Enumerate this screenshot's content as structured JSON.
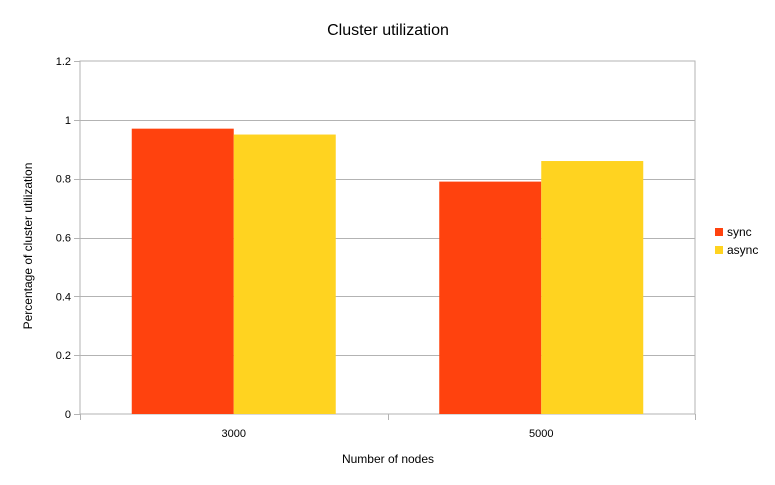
{
  "chart_data": {
    "type": "bar",
    "title": "Cluster utilization",
    "xlabel": "Number of nodes",
    "ylabel": "Percentage of cluster utilization",
    "categories": [
      "3000",
      "5000"
    ],
    "series": [
      {
        "name": "sync",
        "values": [
          0.97,
          0.79
        ],
        "color": "#ff420e"
      },
      {
        "name": "async",
        "values": [
          0.95,
          0.86
        ],
        "color": "#ffd320"
      }
    ],
    "ylim": [
      0,
      1.2
    ],
    "yticks": [
      "0",
      "0.2",
      "0.4",
      "0.6",
      "0.8",
      "1",
      "1.2"
    ],
    "ytick_values": [
      0,
      0.2,
      0.4,
      0.6,
      0.8,
      1.0,
      1.2
    ],
    "grid": true,
    "legend_position": "right"
  }
}
